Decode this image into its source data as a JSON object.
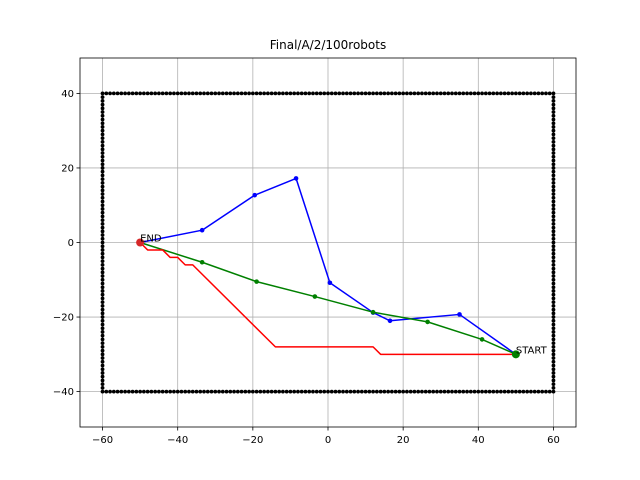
{
  "chart_data": {
    "type": "line",
    "title": "Final/A/2/100robots",
    "xlabel": "",
    "ylabel": "",
    "xlim": [
      -66,
      66
    ],
    "ylim": [
      -49.5,
      49.5
    ],
    "x_ticks": [
      -60,
      -40,
      -20,
      0,
      20,
      40,
      60
    ],
    "y_ticks": [
      -40,
      -20,
      0,
      20,
      40
    ],
    "grid": true,
    "boundary": {
      "x_min": -60,
      "x_max": 60,
      "y_min": -40,
      "y_max": 40,
      "color": "#000000"
    },
    "start": {
      "x": 50,
      "y": -30,
      "label": "START",
      "color": "#008000"
    },
    "end": {
      "x": -50,
      "y": 0,
      "label": "END",
      "color": "#d62728"
    },
    "series": [
      {
        "color": "#0000ff",
        "markers": true,
        "points": [
          [
            50,
            -30
          ],
          [
            35,
            -19.3
          ],
          [
            16.5,
            -21
          ],
          [
            12,
            -18.8
          ],
          [
            0.5,
            -10.8
          ],
          [
            -8.5,
            17.2
          ],
          [
            -19.5,
            12.7
          ],
          [
            -33.5,
            3.3
          ],
          [
            -50,
            0
          ]
        ]
      },
      {
        "color": "#008000",
        "markers": true,
        "points": [
          [
            50,
            -30
          ],
          [
            41,
            -26
          ],
          [
            26.5,
            -21.3
          ],
          [
            12,
            -18.7
          ],
          [
            -3.5,
            -14.5
          ],
          [
            -19,
            -10.5
          ],
          [
            -33.5,
            -5.3
          ],
          [
            -50,
            0
          ]
        ]
      },
      {
        "color": "#ff0000",
        "markers": false,
        "points": [
          [
            50,
            -30
          ],
          [
            14,
            -30
          ],
          [
            12,
            -28
          ],
          [
            -14,
            -28
          ],
          [
            -36,
            -6
          ],
          [
            -38,
            -6
          ],
          [
            -40,
            -4
          ],
          [
            -42,
            -4
          ],
          [
            -44,
            -2
          ],
          [
            -48,
            -2
          ],
          [
            -50,
            0
          ]
        ]
      }
    ]
  }
}
